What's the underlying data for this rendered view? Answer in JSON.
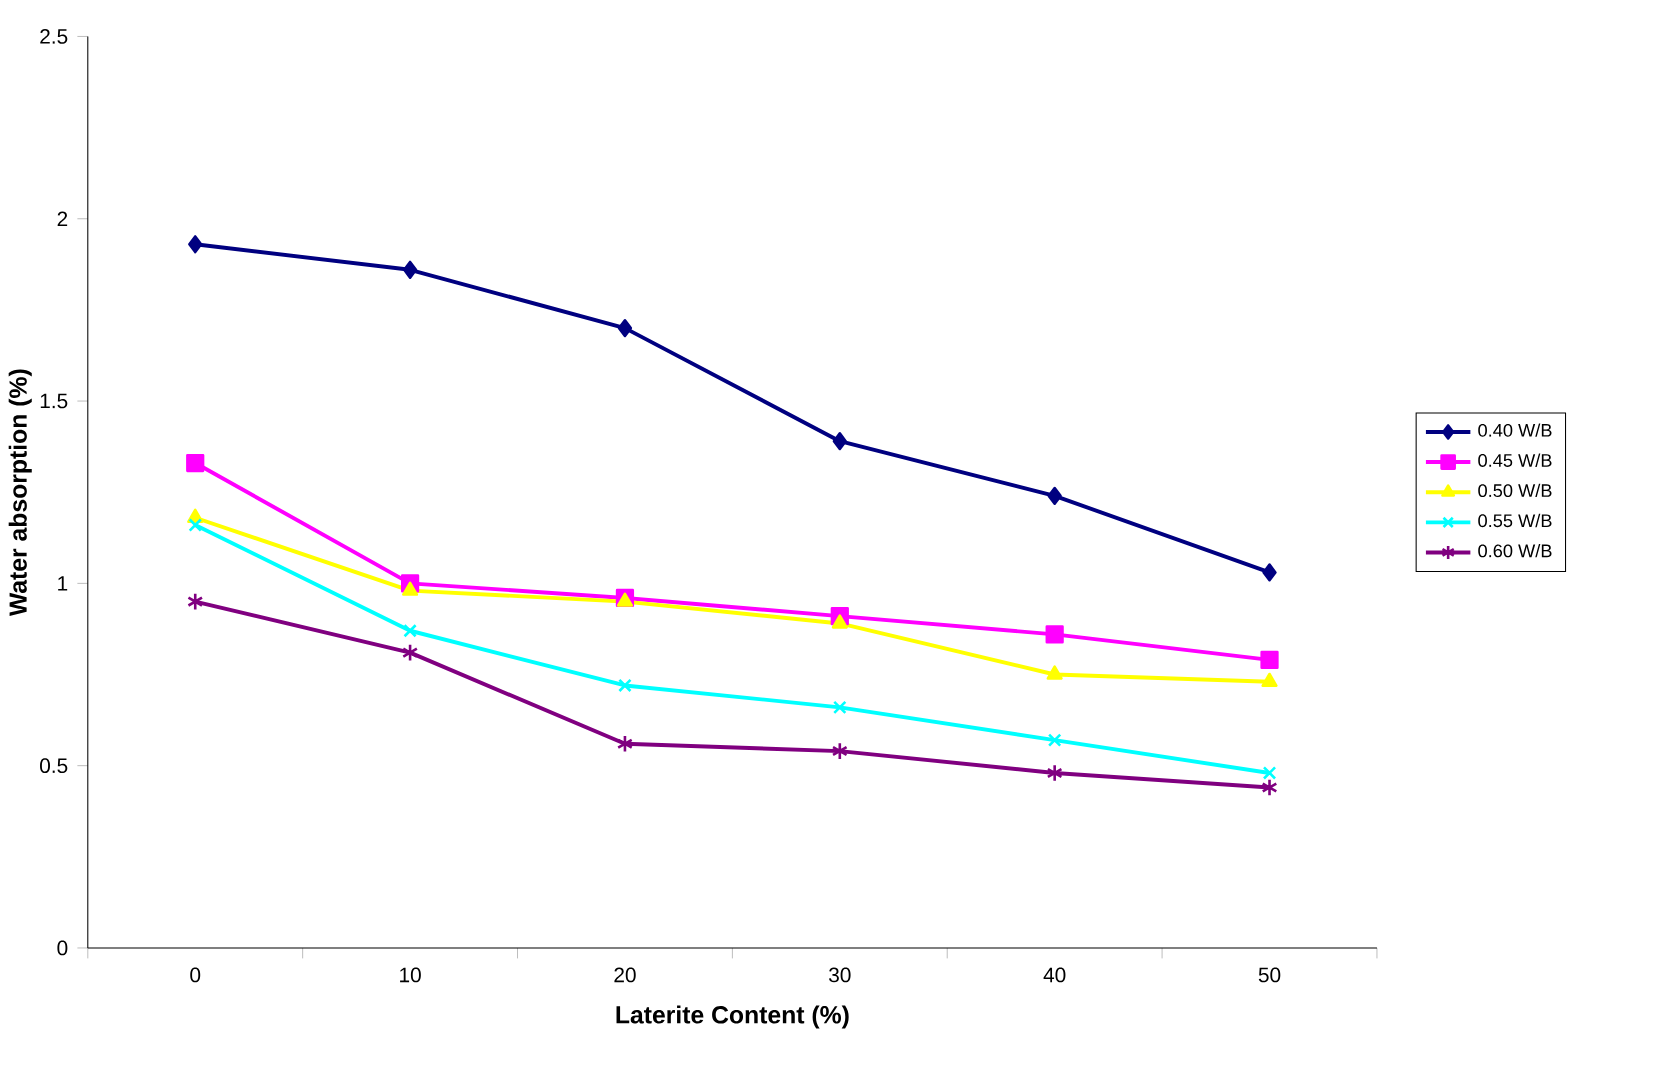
{
  "chart_data": {
    "type": "line",
    "xlabel": "Laterite Content (%)",
    "ylabel": "Water absorption (%)",
    "categories": [
      "0",
      "10",
      "20",
      "30",
      "40",
      "50"
    ],
    "ylim": [
      0,
      2.5
    ],
    "yticks": [
      0,
      0.5,
      1,
      1.5,
      2,
      2.5
    ],
    "legend": "right",
    "series": [
      {
        "name": "0.40 W/B",
        "color": "#000080",
        "marker": "diamond",
        "values": [
          1.93,
          1.86,
          1.7,
          1.39,
          1.24,
          1.03
        ]
      },
      {
        "name": "0.45 W/B",
        "color": "#ff00ff",
        "marker": "square",
        "values": [
          1.33,
          1.0,
          0.96,
          0.91,
          0.86,
          0.79
        ]
      },
      {
        "name": "0.50 W/B",
        "color": "#ffff00",
        "marker": "triangle",
        "values": [
          1.18,
          0.98,
          0.95,
          0.89,
          0.75,
          0.73
        ]
      },
      {
        "name": "0.55 W/B",
        "color": "#00ffff",
        "marker": "cross",
        "values": [
          1.16,
          0.87,
          0.72,
          0.66,
          0.57,
          0.48
        ]
      },
      {
        "name": "0.60 W/B",
        "color": "#800080",
        "marker": "cross",
        "values": [
          0.95,
          0.81,
          0.56,
          0.54,
          0.48,
          0.44
        ]
      }
    ]
  }
}
